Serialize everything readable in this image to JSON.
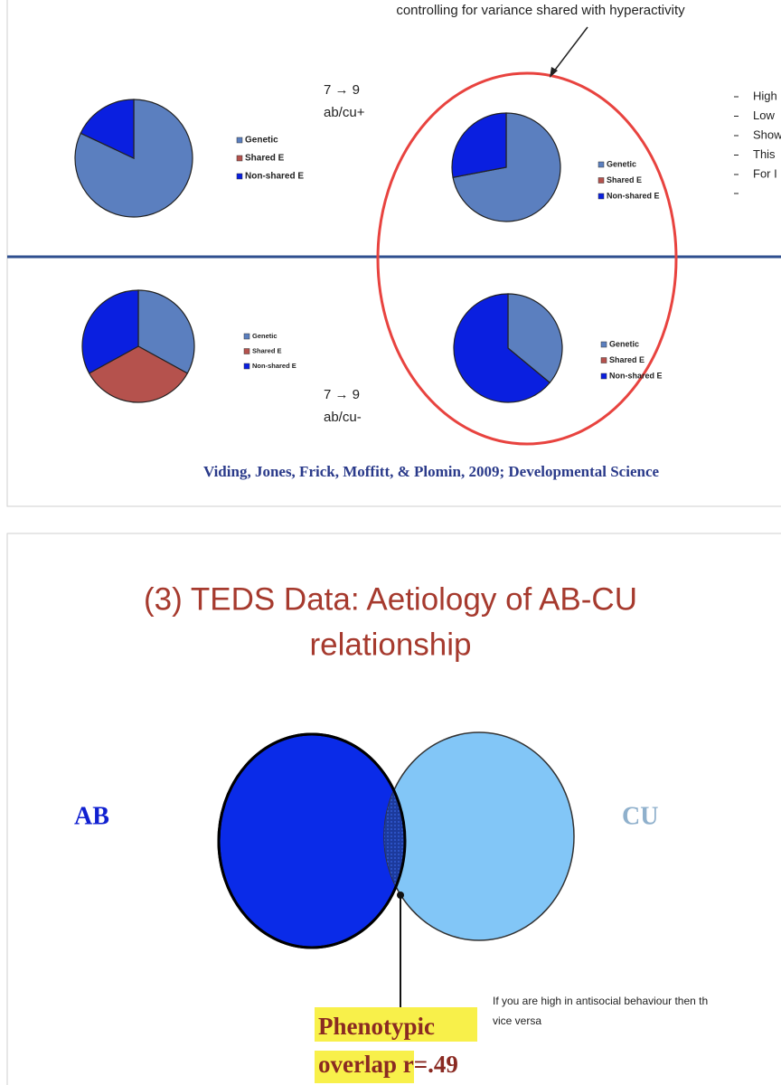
{
  "slide1": {
    "annotation": "controlling for variance shared with hyperactivity",
    "group_labels": [
      {
        "arrow": "7 → 9",
        "label": "ab/cu+"
      },
      {
        "arrow": "7 → 9",
        "label": "ab/cu-"
      }
    ],
    "pies": [
      {
        "labels": [
          "Genetic",
          "Shared E",
          "Non-shared E"
        ],
        "colors": [
          "#5b7fbf",
          "#b5524d",
          "#0a1fe0"
        ],
        "values": [
          82,
          0,
          18
        ]
      },
      {
        "labels": [
          "Genetic",
          "Shared E",
          "Non-shared E"
        ],
        "colors": [
          "#5b7fbf",
          "#b5524d",
          "#0a1fe0"
        ],
        "values": [
          72,
          0,
          28
        ]
      },
      {
        "labels": [
          "Genetic",
          "Shared E",
          "Non-shared E"
        ],
        "colors": [
          "#5b7fbf",
          "#b5524d",
          "#0a1fe0"
        ],
        "values": [
          33,
          34,
          33
        ]
      },
      {
        "labels": [
          "Genetic",
          "Shared E",
          "Non-shared E"
        ],
        "colors": [
          "#5b7fbf",
          "#b5524d",
          "#0a1fe0"
        ],
        "values": [
          36,
          0,
          64
        ]
      }
    ],
    "bullets": [
      "High",
      "Low",
      "Show",
      "This",
      "For I"
    ],
    "citation": "Viding, Jones, Frick, Moffitt, & Plomin, 2009; Developmental Science"
  },
  "slide2": {
    "title_lines": [
      "(3) TEDS Data: Aetiology of AB-CU",
      "relationship"
    ],
    "left_label": "AB",
    "right_label": "CU",
    "caption_lines": [
      "Phenotypic",
      "overlap r=.49"
    ],
    "note_lines": [
      "If you are high in antisocial behaviour then th",
      "vice versa"
    ]
  }
}
